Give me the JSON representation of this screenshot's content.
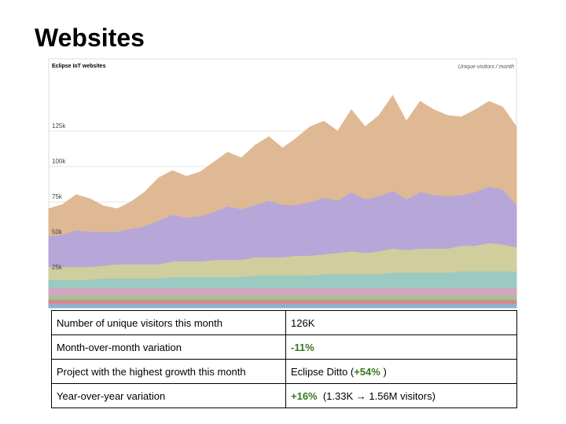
{
  "title": "Websites",
  "chart_data": {
    "type": "area",
    "stacked": true,
    "title": "Eclipse IoT websites",
    "subtitle": "Unique visitors / month",
    "ylim": [
      0,
      165
    ],
    "grid": true,
    "yticks": [
      {
        "value": 25,
        "label": "25k"
      },
      {
        "value": 50,
        "label": "50k"
      },
      {
        "value": 75,
        "label": "75k"
      },
      {
        "value": 100,
        "label": "100k"
      },
      {
        "value": 125,
        "label": "125k"
      }
    ],
    "series": [
      {
        "color": "#9fc5e8",
        "values": [
          3,
          3,
          3,
          3,
          3,
          3,
          3,
          3,
          3,
          3,
          3,
          3,
          3,
          3,
          3,
          3,
          3,
          3,
          3,
          3,
          3,
          3,
          3,
          3,
          3,
          3,
          3,
          3,
          3,
          3,
          3,
          3,
          3,
          3,
          3
        ]
      },
      {
        "color": "#ea9999",
        "values": [
          3,
          3,
          3,
          3,
          3,
          3,
          3,
          3,
          3,
          3,
          3,
          3,
          3,
          3,
          3,
          3,
          3,
          3,
          3,
          3,
          3,
          3,
          3,
          3,
          3,
          3,
          3,
          3,
          3,
          3,
          3,
          3,
          3,
          3,
          3
        ]
      },
      {
        "color": "#b6d7a8",
        "values": [
          3,
          3,
          3,
          3,
          3,
          3,
          3,
          3,
          3,
          3,
          3,
          3,
          3,
          3,
          3,
          3,
          3,
          3,
          3,
          3,
          3,
          3,
          3,
          3,
          3,
          3,
          3,
          3,
          3,
          3,
          3,
          3,
          3,
          3,
          3
        ]
      },
      {
        "color": "#ebb8d6",
        "values": [
          5,
          5,
          5,
          5,
          5,
          5,
          5,
          5,
          5,
          5,
          5,
          5,
          5,
          5,
          5,
          5,
          5,
          5,
          5,
          5,
          5,
          5,
          5,
          5,
          5,
          5,
          5,
          5,
          5,
          5,
          5,
          5,
          5,
          5,
          5
        ]
      },
      {
        "color": "#abe0d6",
        "values": [
          6,
          6,
          6,
          6,
          7,
          7,
          7,
          7,
          7,
          8,
          8,
          8,
          8,
          8,
          8,
          9,
          9,
          9,
          9,
          9,
          10,
          10,
          10,
          10,
          10,
          11,
          11,
          11,
          11,
          11,
          12,
          12,
          12,
          12,
          12
        ]
      },
      {
        "color": "#e7e5ad",
        "values": [
          9,
          9,
          9,
          9,
          9,
          10,
          10,
          10,
          10,
          11,
          11,
          11,
          12,
          12,
          12,
          13,
          13,
          13,
          14,
          14,
          14,
          15,
          16,
          15,
          16,
          17,
          16,
          17,
          17,
          17,
          18,
          18,
          20,
          19,
          17
        ]
      },
      {
        "color": "#cbbaf0",
        "values": [
          22,
          23,
          26,
          25,
          24,
          23,
          25,
          27,
          31,
          33,
          31,
          32,
          34,
          38,
          36,
          37,
          40,
          37,
          36,
          38,
          40,
          37,
          42,
          38,
          39,
          41,
          36,
          40,
          38,
          37,
          36,
          38,
          40,
          39,
          30
        ]
      },
      {
        "color": "#f8cda4",
        "values": [
          19,
          21,
          25,
          23,
          18,
          16,
          19,
          24,
          30,
          31,
          29,
          31,
          35,
          38,
          36,
          42,
          45,
          40,
          47,
          53,
          54,
          49,
          58,
          51,
          57,
          67,
          55,
          64,
          60,
          57,
          55,
          58,
          60,
          58,
          55
        ]
      }
    ]
  },
  "table": {
    "rows": [
      [
        [
          {
            "text": "Number of unique visitors this month"
          }
        ],
        [
          {
            "text": "126K"
          }
        ]
      ],
      [
        [
          {
            "text": "Month-over-month variation"
          }
        ],
        [
          {
            "text": "-11%",
            "color": "#38761d",
            "bold": true
          }
        ]
      ],
      [
        [
          {
            "text": "Project with the highest growth this month"
          }
        ],
        [
          {
            "text": "Eclipse Ditto ("
          },
          {
            "text": "+54%",
            "color": "#38761d",
            "bold": true
          },
          {
            "text": " )"
          }
        ]
      ],
      [
        [
          {
            "text": "Year-over-year variation"
          }
        ],
        [
          {
            "text": "+16%",
            "color": "#38761d",
            "bold": true
          },
          {
            "text": "  (1.33K → 1.56M visitors)"
          }
        ]
      ]
    ]
  }
}
